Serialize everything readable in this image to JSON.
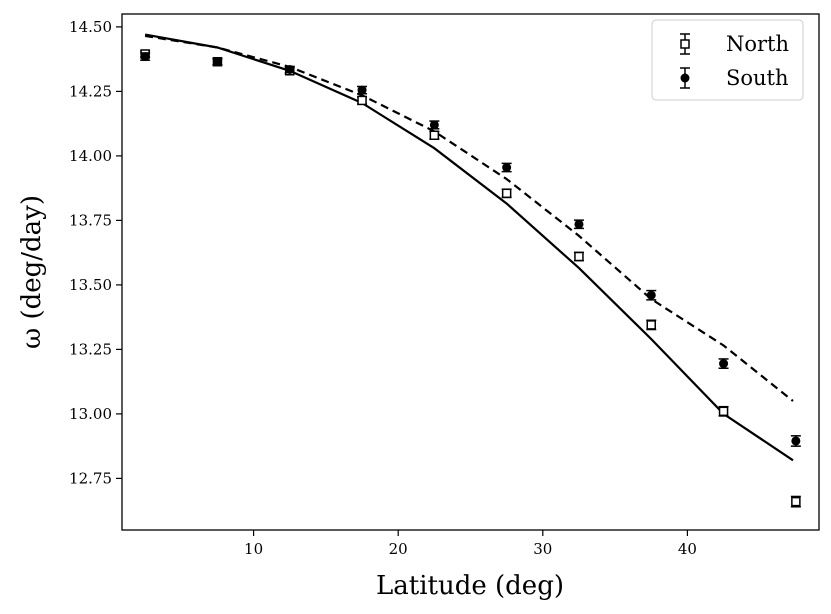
{
  "chart_data": {
    "type": "scatter",
    "xlabel": "Latitude (deg)",
    "ylabel": "ω (deg/day)",
    "xlim": [
      0.9,
      49.1
    ],
    "ylim": [
      12.55,
      14.55
    ],
    "xticks": [
      10,
      20,
      30,
      40
    ],
    "yticks": [
      12.75,
      13.0,
      13.25,
      13.5,
      13.75,
      14.0,
      14.25,
      14.5
    ],
    "xtick_labels": [
      "10",
      "20",
      "30",
      "40"
    ],
    "ytick_labels": [
      "12.75",
      "13.00",
      "13.25",
      "13.50",
      "13.75",
      "14.00",
      "14.25",
      "14.50"
    ],
    "grid": false,
    "legend": {
      "position": "top-right",
      "entries": [
        {
          "label": "North",
          "marker": "open-square"
        },
        {
          "label": "South",
          "marker": "filled-circle"
        }
      ]
    },
    "series": [
      {
        "name": "North",
        "marker": "open-square",
        "x": [
          2.5,
          7.5,
          12.5,
          17.5,
          22.5,
          27.5,
          32.5,
          37.5,
          42.5,
          47.5
        ],
        "y": [
          14.395,
          14.365,
          14.33,
          14.215,
          14.08,
          13.855,
          13.61,
          13.345,
          13.01,
          12.66
        ],
        "err": [
          0.012,
          0.012,
          0.012,
          0.014,
          0.015,
          0.016,
          0.016,
          0.018,
          0.018,
          0.02
        ]
      },
      {
        "name": "South",
        "marker": "filled-circle",
        "x": [
          2.5,
          7.5,
          12.5,
          17.5,
          22.5,
          27.5,
          32.5,
          37.5,
          42.5,
          47.5
        ],
        "y": [
          14.385,
          14.365,
          14.335,
          14.255,
          14.12,
          13.955,
          13.735,
          13.46,
          13.195,
          12.895
        ],
        "err": [
          0.014,
          0.012,
          0.012,
          0.014,
          0.015,
          0.016,
          0.016,
          0.018,
          0.018,
          0.02
        ]
      }
    ],
    "lines": [
      {
        "style": "solid",
        "x": [
          2.5,
          7.5,
          12.5,
          17.5,
          22.5,
          27.5,
          32.5,
          37.5,
          42.5,
          47.3
        ],
        "y": [
          14.47,
          14.42,
          14.33,
          14.205,
          14.03,
          13.815,
          13.565,
          13.29,
          13.0,
          12.82
        ]
      },
      {
        "style": "dashed",
        "x": [
          2.5,
          7.5,
          12.5,
          17.5,
          22.5,
          27.5,
          32.5,
          37.5,
          42.5,
          47.3
        ],
        "y": [
          14.465,
          14.42,
          14.345,
          14.235,
          14.095,
          13.91,
          13.69,
          13.445,
          13.265,
          13.05
        ]
      }
    ]
  }
}
